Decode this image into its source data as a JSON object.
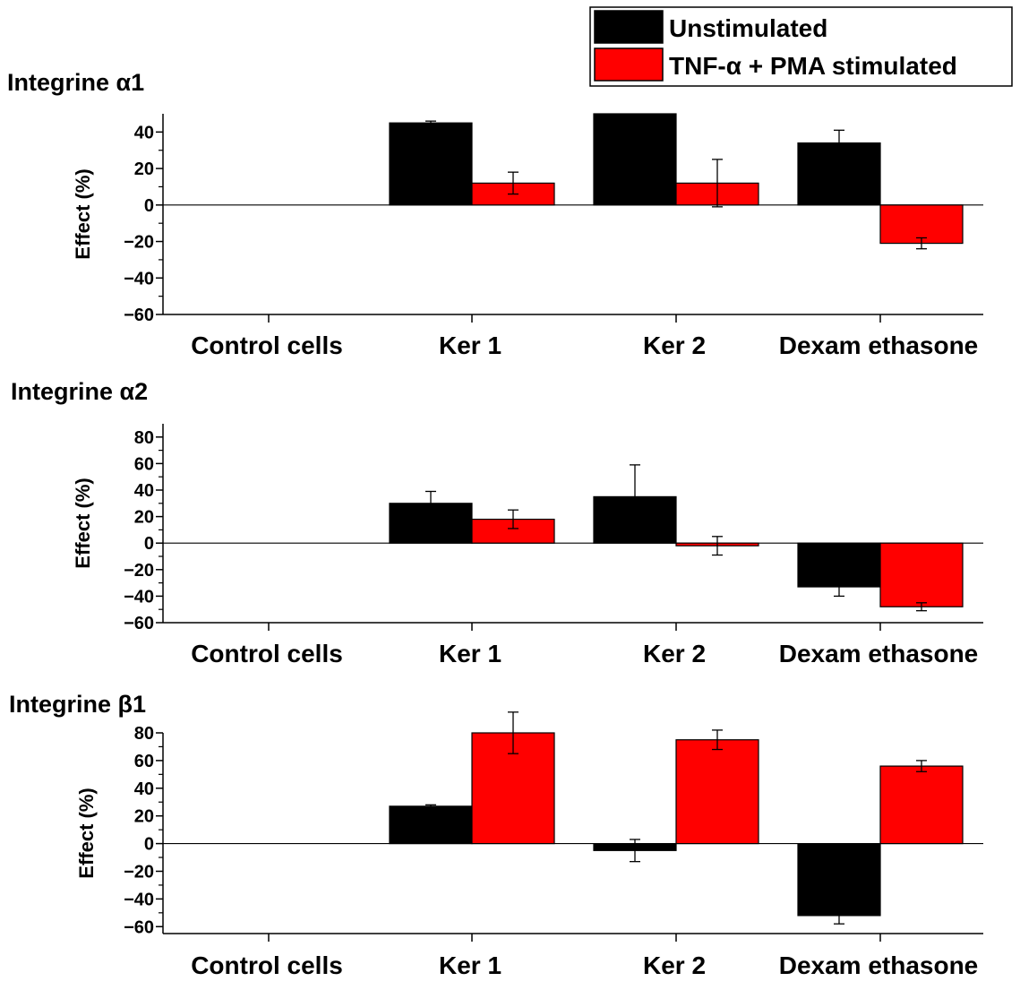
{
  "legend": {
    "entries": [
      {
        "label": "Unstimulated",
        "color": "#000000"
      },
      {
        "label": "TNF-α + PMA stimulated",
        "color": "#ff0000"
      }
    ]
  },
  "chart_data": [
    {
      "type": "bar",
      "title": "Integrine α1",
      "ylabel": "Effect (%)",
      "xlabel": "",
      "categories": [
        "Control cells",
        "Ker 1",
        "Ker 2",
        "Dexam ethasone"
      ],
      "ylim": [
        -60,
        50
      ],
      "yticks": [
        -60,
        -40,
        -20,
        0,
        20,
        40
      ],
      "series": [
        {
          "name": "Unstimulated",
          "color": "#000000",
          "values": [
            0,
            45,
            50,
            34
          ],
          "errors": [
            0,
            1,
            0,
            7
          ]
        },
        {
          "name": "TNF-α + PMA stimulated",
          "color": "#ff0000",
          "values": [
            0,
            12,
            12,
            -21
          ],
          "errors": [
            0,
            6,
            13,
            3
          ]
        }
      ],
      "legend": "top-right"
    },
    {
      "type": "bar",
      "title": "Integrine α2",
      "ylabel": "Effect (%)",
      "xlabel": "",
      "categories": [
        "Control cells",
        "Ker 1",
        "Ker 2",
        "Dexam ethasone"
      ],
      "ylim": [
        -60,
        90
      ],
      "yticks": [
        -60,
        -40,
        -20,
        0,
        20,
        40,
        60,
        80
      ],
      "series": [
        {
          "name": "Unstimulated",
          "color": "#000000",
          "values": [
            0,
            30,
            35,
            -33
          ],
          "errors": [
            0,
            9,
            24,
            7
          ]
        },
        {
          "name": "TNF-α + PMA stimulated",
          "color": "#ff0000",
          "values": [
            0,
            18,
            -2,
            -48
          ],
          "errors": [
            0,
            7,
            7,
            3
          ]
        }
      ]
    },
    {
      "type": "bar",
      "title": "Integrine β1",
      "ylabel": "Effect (%)",
      "xlabel": "",
      "categories": [
        "Control cells",
        "Ker 1",
        "Ker 2",
        "Dexam ethasone"
      ],
      "ylim": [
        -65,
        80
      ],
      "yticks": [
        -60,
        -40,
        -20,
        0,
        20,
        40,
        60,
        80
      ],
      "series": [
        {
          "name": "Unstimulated",
          "color": "#000000",
          "values": [
            0,
            27,
            -5,
            -52
          ],
          "errors": [
            0,
            1,
            8,
            6
          ]
        },
        {
          "name": "TNF-α + PMA stimulated",
          "color": "#ff0000",
          "values": [
            0,
            80,
            75,
            56
          ],
          "errors": [
            0,
            15,
            7,
            4
          ]
        }
      ]
    }
  ]
}
